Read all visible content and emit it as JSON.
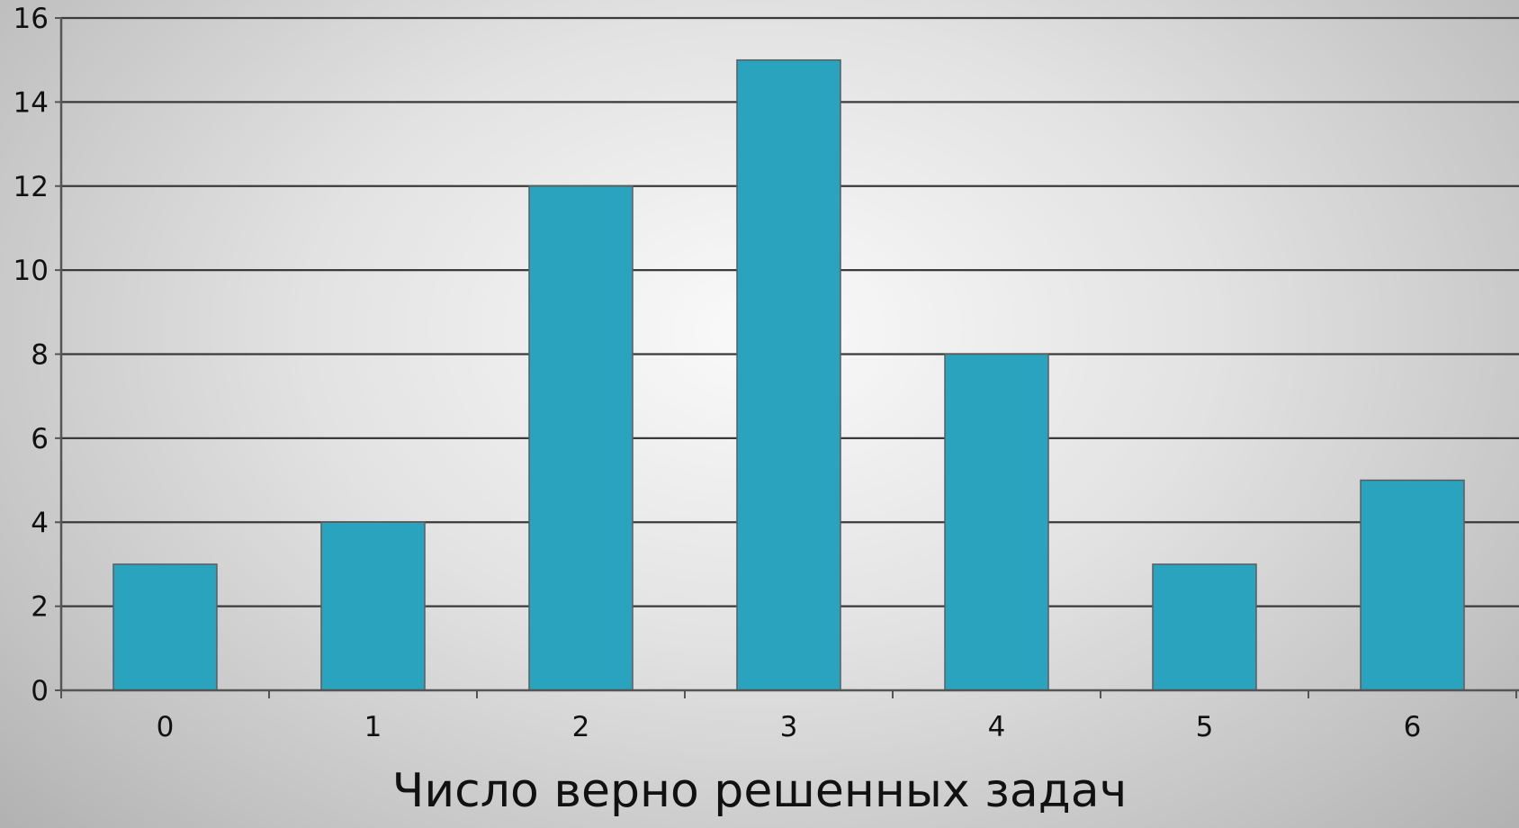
{
  "chart_data": {
    "type": "bar",
    "categories": [
      "0",
      "1",
      "2",
      "3",
      "4",
      "5",
      "6"
    ],
    "values": [
      3,
      4,
      12,
      15,
      8,
      3,
      5
    ],
    "xlabel": "Число верно решенных задач",
    "ylabel": "",
    "ylim": [
      0,
      16
    ],
    "yticks": [
      "0",
      "2",
      "4",
      "6",
      "8",
      "10",
      "12",
      "14",
      "16"
    ],
    "grid": true,
    "legend": "none",
    "colors": {
      "bar_fill": "#2aa3bf",
      "bar_stroke": "#5c5c5c",
      "gridline": "#3a3a3a",
      "axis": "#555555",
      "text": "#111111"
    }
  }
}
